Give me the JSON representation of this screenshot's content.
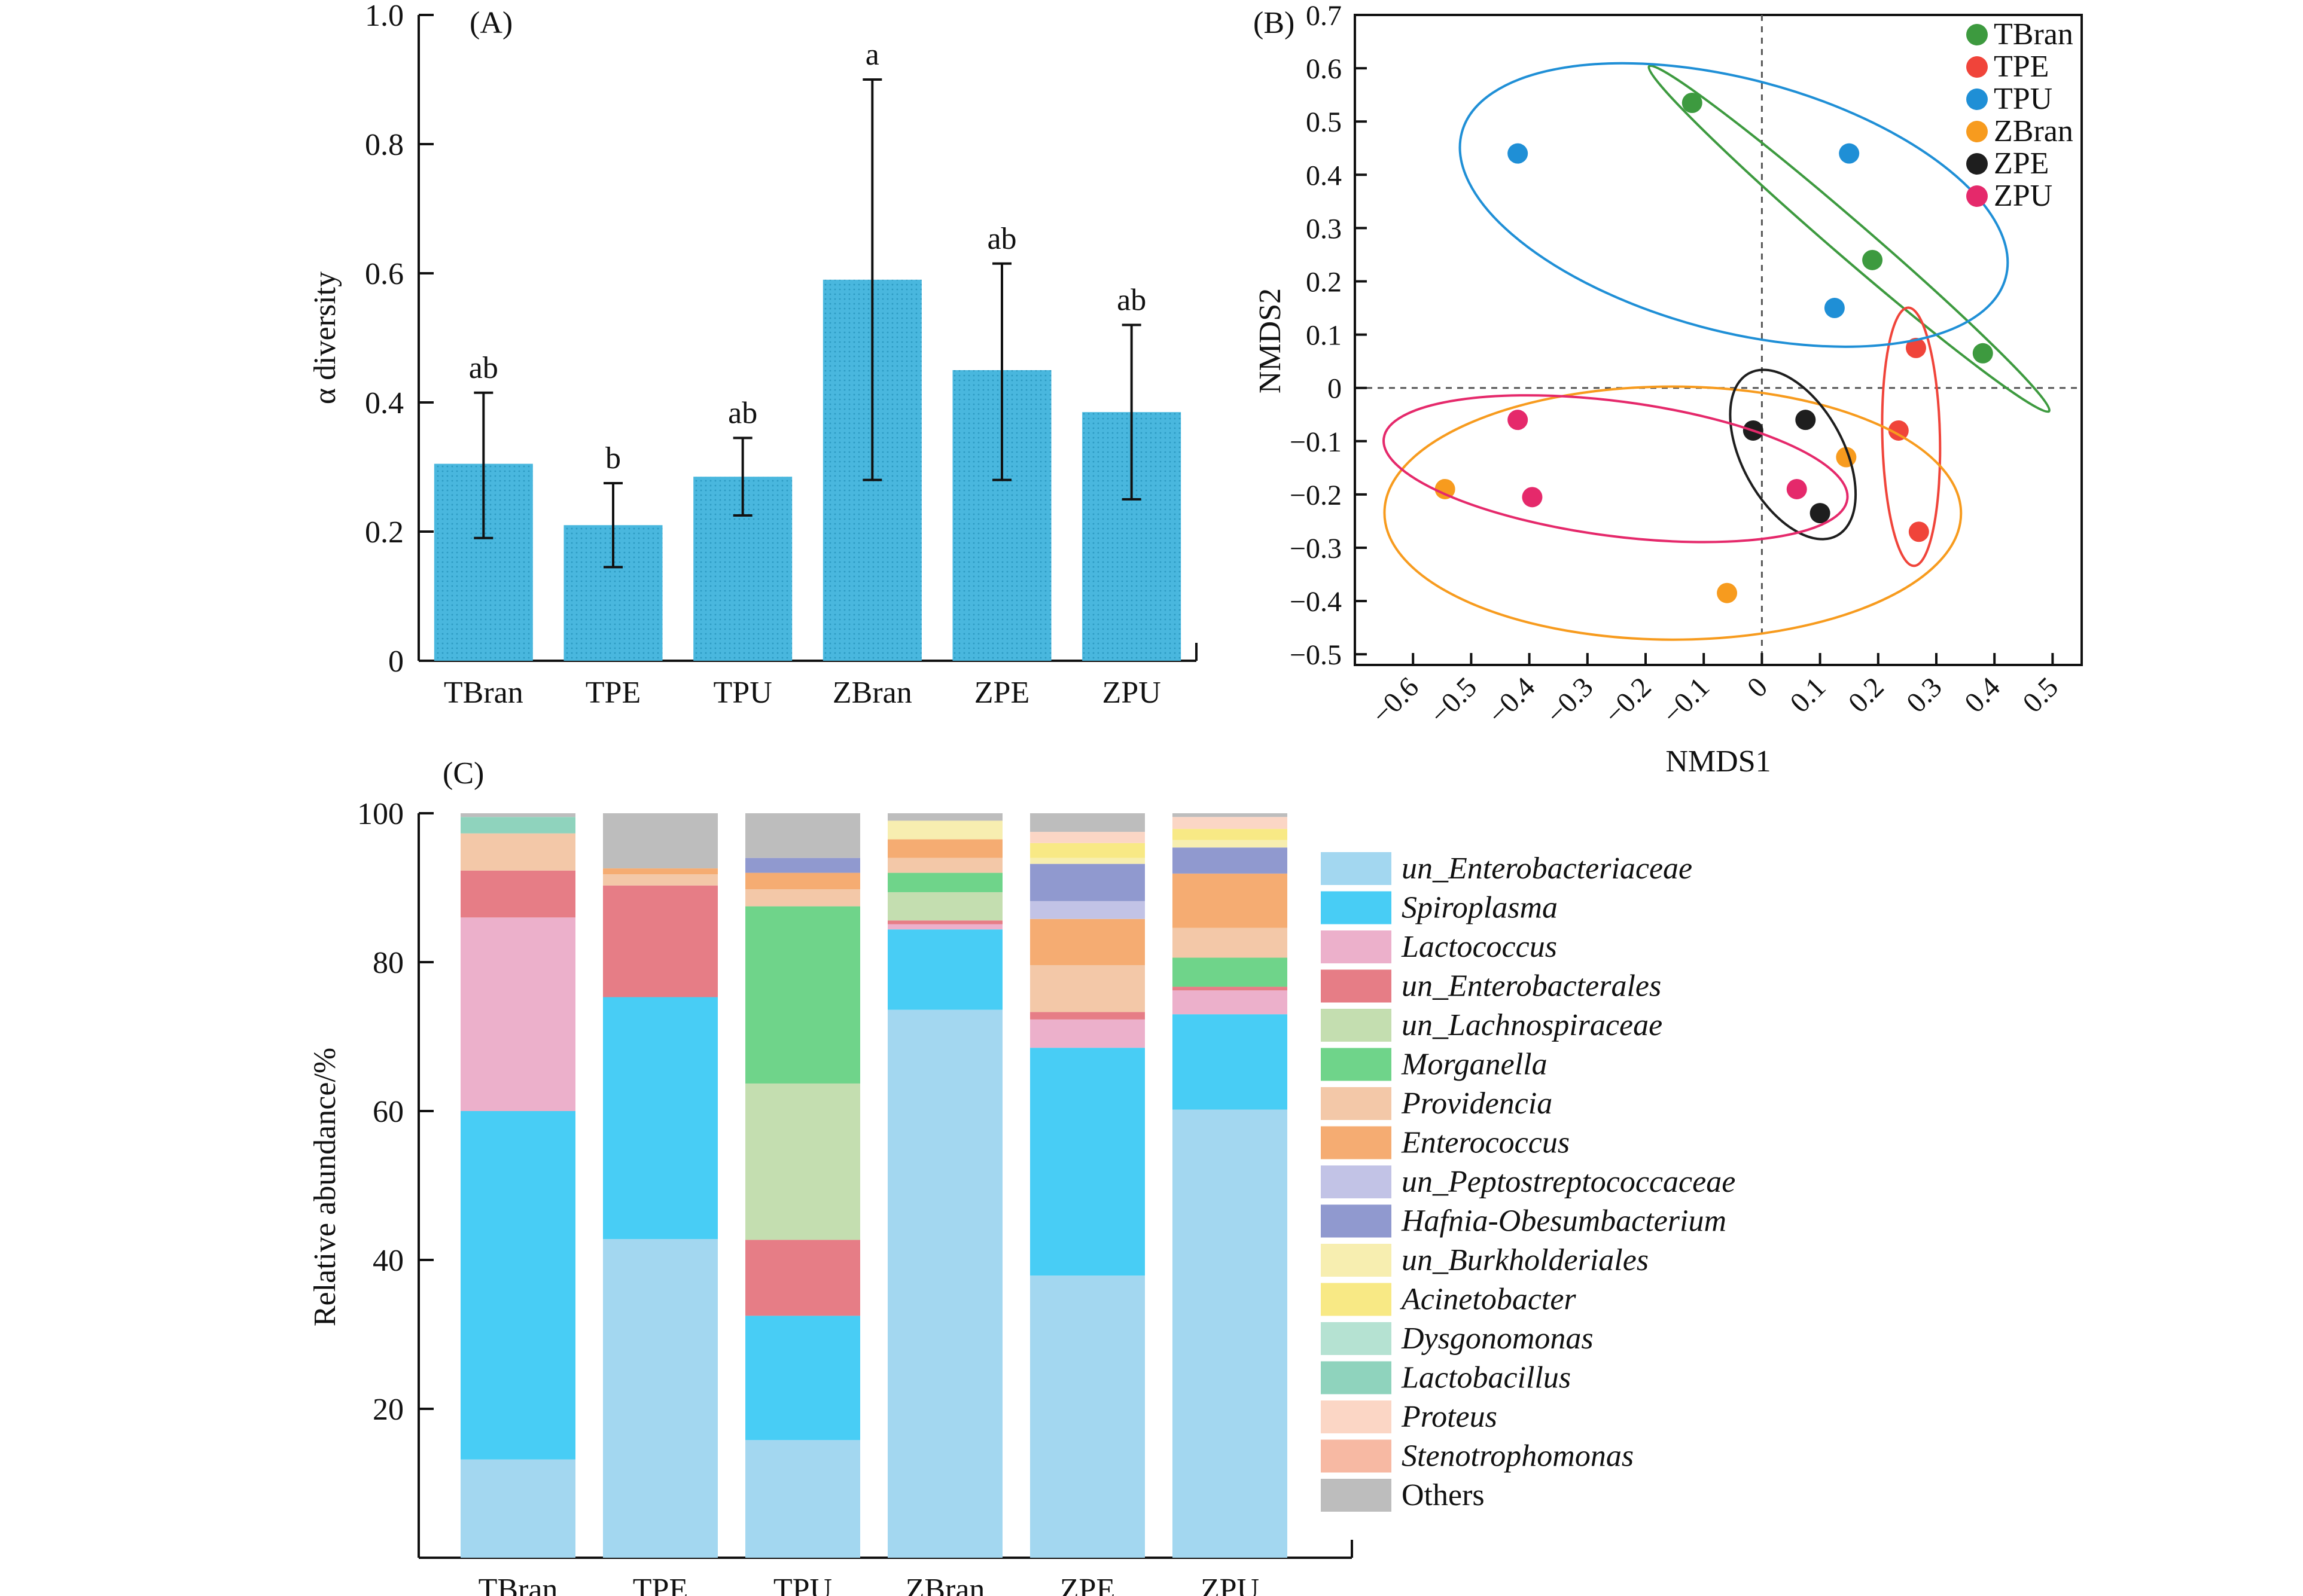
{
  "chart_data": [
    {
      "panel": "(A)",
      "type": "bar",
      "ylabel": "α diversity",
      "ylim": [
        0,
        1.0
      ],
      "yticks": [
        "0",
        "0.2",
        "0.4",
        "0.6",
        "0.8",
        "1.0"
      ],
      "categories": [
        "TBran",
        "TPE",
        "TPU",
        "ZBran",
        "ZPE",
        "ZPU"
      ],
      "values": [
        0.305,
        0.21,
        0.285,
        0.59,
        0.45,
        0.385
      ],
      "err_low": [
        0.19,
        0.145,
        0.225,
        0.28,
        0.28,
        0.25
      ],
      "err_high": [
        0.415,
        0.275,
        0.345,
        0.9,
        0.615,
        0.52
      ],
      "letters": [
        "ab",
        "b",
        "ab",
        "a",
        "ab",
        "ab"
      ],
      "bar_color": "#49b7de"
    },
    {
      "panel": "(B)",
      "type": "scatter",
      "xlabel": "NMDS1",
      "ylabel": "NMDS2",
      "xlim": [
        -0.7,
        0.55
      ],
      "ylim": [
        -0.52,
        0.7
      ],
      "xticks": [
        "−0.6",
        "−0.5",
        "−0.4",
        "−0.3",
        "−0.2",
        "−0.1",
        "0",
        "0.1",
        "0.2",
        "0.3",
        "0.4",
        "0.5"
      ],
      "yticks": [
        "0.7",
        "0.6",
        "0.5",
        "0.4",
        "0.3",
        "0.2",
        "0.1",
        "0",
        "−0.1",
        "−0.2",
        "−0.3",
        "−0.4",
        "−0.5"
      ],
      "legend_position": "top-right",
      "series": [
        {
          "name": "TBran",
          "color": "#3d9a3f",
          "points": [
            [
              -0.12,
              0.535
            ],
            [
              0.19,
              0.24
            ],
            [
              0.38,
              0.065
            ]
          ]
        },
        {
          "name": "TPE",
          "color": "#f0443a",
          "points": [
            [
              0.265,
              0.075
            ],
            [
              0.235,
              -0.08
            ],
            [
              0.27,
              -0.27
            ]
          ]
        },
        {
          "name": "TPU",
          "color": "#1f8fd6",
          "points": [
            [
              -0.42,
              0.44
            ],
            [
              0.15,
              0.44
            ],
            [
              0.125,
              0.15
            ]
          ]
        },
        {
          "name": "ZBran",
          "color": "#f79b1e",
          "points": [
            [
              -0.545,
              -0.19
            ],
            [
              0.145,
              -0.13
            ],
            [
              -0.06,
              -0.385
            ]
          ]
        },
        {
          "name": "ZPE",
          "color": "#1e1e1e",
          "points": [
            [
              0.075,
              -0.06
            ],
            [
              -0.015,
              -0.08
            ],
            [
              0.1,
              -0.235
            ]
          ]
        },
        {
          "name": "ZPU",
          "color": "#e5296b",
          "points": [
            [
              -0.42,
              -0.06
            ],
            [
              -0.395,
              -0.205
            ],
            [
              0.06,
              -0.19
            ]
          ]
        }
      ]
    },
    {
      "panel": "(C)",
      "type": "bar",
      "stacked": true,
      "ylabel": "Relative abundance/%",
      "ylim": [
        0,
        100
      ],
      "yticks": [
        "20",
        "40",
        "60",
        "80",
        "100"
      ],
      "categories": [
        "TBran",
        "TPE",
        "TPU",
        "ZBran",
        "ZPE",
        "ZPU"
      ],
      "series": [
        {
          "name": "un_Enterobacteriaceae",
          "italic": true,
          "color": "#a3d7f0",
          "values": [
            13.2,
            42.8,
            15.8,
            73.6,
            37.9,
            60.2
          ]
        },
        {
          "name": "Spiroplasma",
          "italic": true,
          "color": "#48cdf5",
          "values": [
            46.8,
            32.5,
            16.7,
            10.8,
            30.6,
            12.8
          ]
        },
        {
          "name": "Lactococcus",
          "italic": true,
          "color": "#ecb0cb",
          "values": [
            26.0,
            0.0,
            0.0,
            0.7,
            3.8,
            3.2
          ]
        },
        {
          "name": "un_Enterobacterales",
          "italic": true,
          "color": "#e67d86",
          "values": [
            6.3,
            15.0,
            10.2,
            0.5,
            1.0,
            0.5
          ]
        },
        {
          "name": "un_Lachnospiraceae",
          "italic": true,
          "color": "#c4deb0",
          "values": [
            0.0,
            0.0,
            21.0,
            3.8,
            0.0,
            0.0
          ]
        },
        {
          "name": "Morganella",
          "italic": true,
          "color": "#6fd48a",
          "values": [
            0.0,
            0.0,
            23.8,
            2.6,
            0.0,
            3.9
          ]
        },
        {
          "name": "Providencia",
          "italic": true,
          "color": "#f3c8a8",
          "values": [
            5.0,
            1.5,
            2.3,
            2.0,
            6.3,
            4.0
          ]
        },
        {
          "name": "Enterococcus",
          "italic": true,
          "color": "#f5ac72",
          "values": [
            0.0,
            0.8,
            2.2,
            2.5,
            6.2,
            7.3
          ]
        },
        {
          "name": "un_Peptostreptococcaceae",
          "italic": true,
          "color": "#c2c3e6",
          "values": [
            0.0,
            0.0,
            0.0,
            0.0,
            2.4,
            0.0
          ]
        },
        {
          "name": "Hafnia-Obesumbacterium",
          "italic": true,
          "color": "#9099cf",
          "values": [
            0.0,
            0.0,
            2.0,
            0.0,
            5.0,
            3.5
          ]
        },
        {
          "name": "un_Burkholderiales",
          "italic": true,
          "color": "#f7eeb0",
          "values": [
            0.0,
            0.0,
            0.0,
            2.5,
            0.8,
            1.0
          ]
        },
        {
          "name": "Acinetobacter",
          "italic": true,
          "color": "#f8e985",
          "values": [
            0.0,
            0.0,
            0.0,
            0.0,
            2.0,
            1.5
          ]
        },
        {
          "name": "Dysgonomonas",
          "italic": true,
          "color": "#b5e2d2",
          "values": [
            0.0,
            0.0,
            0.0,
            0.0,
            0.0,
            0.0
          ]
        },
        {
          "name": "Lactobacillus",
          "italic": true,
          "color": "#8fd3bd",
          "values": [
            2.2,
            0.0,
            0.0,
            0.0,
            0.0,
            0.0
          ]
        },
        {
          "name": "Proteus",
          "italic": true,
          "color": "#fbd6c5",
          "values": [
            0.0,
            0.0,
            0.0,
            0.0,
            1.5,
            1.6
          ]
        },
        {
          "name": "Stenotrophomonas",
          "italic": true,
          "color": "#f7b9a3",
          "values": [
            0.0,
            0.0,
            0.0,
            0.0,
            0.0,
            0.0
          ]
        },
        {
          "name": "Others",
          "italic": false,
          "color": "#bdbdbd",
          "values": [
            0.5,
            7.4,
            6.0,
            1.0,
            2.5,
            0.5
          ]
        }
      ]
    }
  ]
}
